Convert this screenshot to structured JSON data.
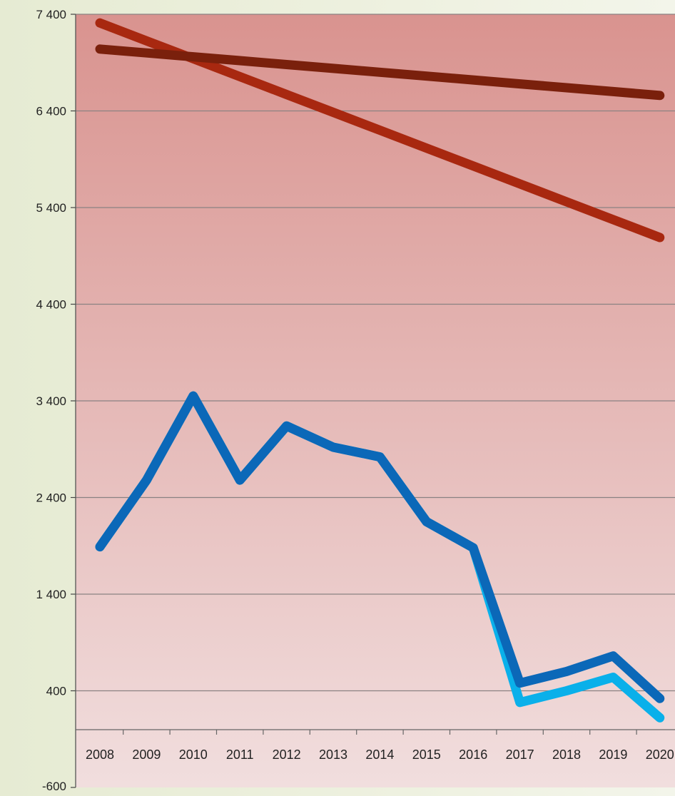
{
  "chart_data": {
    "type": "line",
    "title": "",
    "xlabel": "",
    "ylabel": "",
    "x": [
      "2008",
      "2009",
      "2010",
      "2011",
      "2012",
      "2013",
      "2014",
      "2015",
      "2016",
      "2017",
      "2018",
      "2019",
      "2020"
    ],
    "ylim": [
      -600,
      7400
    ],
    "yticks": [
      -600,
      400,
      1400,
      2400,
      3400,
      4400,
      5400,
      6400,
      7400
    ],
    "ytick_labels": [
      "-600",
      "400",
      "1 400",
      "2 400",
      "3 400",
      "4 400",
      "5 400",
      "6 400",
      "7 400"
    ],
    "grid": true,
    "legend": "none",
    "plot_background": {
      "top": "#d9938f",
      "bottom": "#f1dede"
    },
    "series": [
      {
        "color": "#a82810",
        "values": [
          7310,
          7125,
          6940,
          6755,
          6570,
          6385,
          6200,
          6015,
          5830,
          5645,
          5460,
          5275,
          5090
        ]
      },
      {
        "color": "#7a200c",
        "values": [
          7040,
          7000,
          6960,
          6920,
          6880,
          6840,
          6800,
          6760,
          6720,
          6680,
          6640,
          6600,
          6560
        ]
      },
      {
        "color": "#0ab0ea",
        "values": [
          1890,
          2580,
          3450,
          2580,
          3140,
          2920,
          2820,
          2150,
          1880,
          280,
          400,
          540,
          120
        ]
      },
      {
        "color": "#0b68b8",
        "values": [
          1890,
          2580,
          3450,
          2580,
          3140,
          2920,
          2820,
          2150,
          1880,
          480,
          600,
          760,
          320
        ]
      }
    ]
  }
}
